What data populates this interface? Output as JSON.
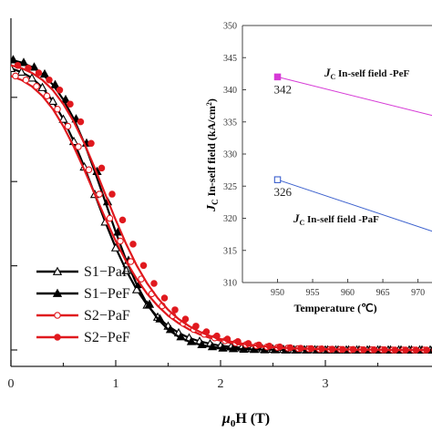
{
  "chart_data": [
    {
      "type": "line",
      "xlabel_main": "μ",
      "xlabel_sub": "0",
      "xlabel_rest": "H (T)",
      "ylabel": "",
      "xlim": [
        0,
        4
      ],
      "ylim": [
        0,
        1.1
      ],
      "x_ticks": [
        "0",
        "1",
        "2",
        "3"
      ],
      "grid": false,
      "legend_position": "lower-left",
      "x": [
        0,
        0.1,
        0.2,
        0.3,
        0.4,
        0.5,
        0.6,
        0.7,
        0.8,
        0.9,
        1.0,
        1.1,
        1.2,
        1.3,
        1.4,
        1.5,
        1.6,
        1.7,
        1.8,
        1.9,
        2.0,
        2.1,
        2.2,
        2.3,
        2.4,
        2.5,
        2.6,
        2.7,
        2.8,
        2.9,
        3.0,
        3.1,
        3.2,
        3.3,
        3.4,
        3.5,
        3.6,
        3.7,
        3.8,
        3.9,
        4.0
      ],
      "series": [
        {
          "name": "S1−PaF",
          "color": "#000000",
          "marker": "open-triangle",
          "values": [
            1.003,
            0.99,
            0.969,
            0.935,
            0.886,
            0.822,
            0.743,
            0.652,
            0.554,
            0.456,
            0.364,
            0.283,
            0.215,
            0.16,
            0.117,
            0.085,
            0.061,
            0.043,
            0.031,
            0.022,
            0.015,
            0.011,
            0.008,
            0.005,
            0.004,
            0.003,
            0.002,
            0.001,
            0.001,
            0.001,
            0.0,
            0.0,
            0.0,
            0.0,
            0.0,
            0.0,
            0.0,
            0.0,
            0.0,
            0.0,
            0.0
          ]
        },
        {
          "name": "S1−PeF",
          "color": "#000000",
          "marker": "filled-triangle",
          "values": [
            1.034,
            1.024,
            1.008,
            0.983,
            0.945,
            0.892,
            0.823,
            0.737,
            0.636,
            0.528,
            0.42,
            0.319,
            0.233,
            0.163,
            0.111,
            0.073,
            0.047,
            0.03,
            0.019,
            0.012,
            0.007,
            0.005,
            0.003,
            0.002,
            0.001,
            0.001,
            0.0,
            0.0,
            0.0,
            0.0,
            0.0,
            0.0,
            0.0,
            0.0,
            0.0,
            0.0,
            0.0,
            0.0,
            0.0,
            0.0,
            0.0
          ]
        },
        {
          "name": "S2−PaF",
          "color": "#e0191e",
          "marker": "open-circle",
          "values": [
            0.976,
            0.962,
            0.939,
            0.905,
            0.858,
            0.797,
            0.724,
            0.642,
            0.555,
            0.469,
            0.388,
            0.315,
            0.253,
            0.2,
            0.157,
            0.122,
            0.095,
            0.073,
            0.056,
            0.043,
            0.033,
            0.025,
            0.019,
            0.015,
            0.011,
            0.009,
            0.007,
            0.005,
            0.004,
            0.003,
            0.002,
            0.002,
            0.001,
            0.001,
            0.001,
            0.001,
            0.0,
            0.0,
            0.0,
            0.0,
            0.0
          ]
        },
        {
          "name": "S2−PeF",
          "color": "#e0191e",
          "marker": "filled-circle",
          "values": [
            1.014,
            1.004,
            0.987,
            0.962,
            0.926,
            0.876,
            0.813,
            0.736,
            0.648,
            0.555,
            0.463,
            0.377,
            0.301,
            0.237,
            0.185,
            0.143,
            0.11,
            0.085,
            0.065,
            0.05,
            0.039,
            0.03,
            0.023,
            0.018,
            0.014,
            0.011,
            0.008,
            0.006,
            0.005,
            0.004,
            0.003,
            0.002,
            0.002,
            0.001,
            0.001,
            0.001,
            0.0,
            0.0,
            0.0,
            0.0,
            0.0
          ]
        }
      ]
    },
    {
      "type": "line",
      "xlabel": "Temperature (℃)",
      "ylabel_main": "J",
      "ylabel_sub": "C",
      "ylabel_rest": " In-self field (kA/cm",
      "ylabel_sup": "2",
      "ylabel_end": ")",
      "xlim": [
        945,
        972
      ],
      "ylim": [
        310,
        350
      ],
      "x_ticks": [
        950,
        955,
        960,
        965,
        970
      ],
      "y_ticks": [
        310,
        315,
        320,
        325,
        330,
        335,
        340,
        345,
        350
      ],
      "grid": false,
      "series": [
        {
          "name_main": "J",
          "name_sub": "C",
          "name_rest": " In-self field -PeF",
          "color": "#d63ad6",
          "marker": "filled-square",
          "points": [
            [
              950,
              342
            ],
            [
              972,
              336
            ]
          ]
        },
        {
          "name_main": "J",
          "name_sub": "C",
          "name_rest": " In-self field -PaF",
          "color": "#3a5fcd",
          "marker": "open-square",
          "points": [
            [
              950,
              326
            ],
            [
              972,
              318
            ]
          ]
        }
      ],
      "annotations": [
        {
          "text": "342",
          "x": 950,
          "y": 342
        },
        {
          "text": "326",
          "x": 950,
          "y": 326
        }
      ]
    }
  ]
}
